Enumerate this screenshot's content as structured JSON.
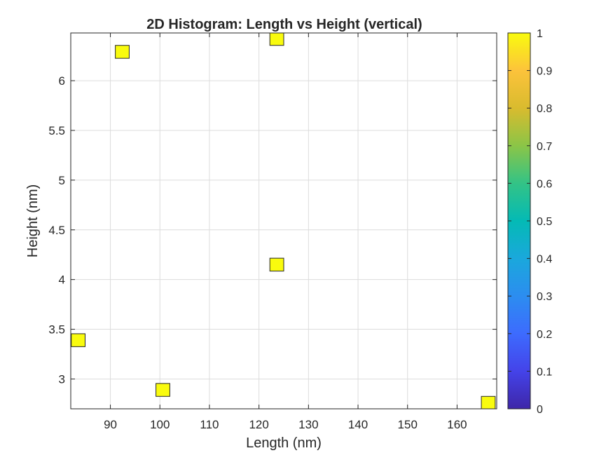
{
  "chart_data": {
    "type": "heatmap",
    "title": "2D Histogram: Length vs Height (vertical)",
    "xlabel": "Length (nm)",
    "ylabel": "Height (nm)",
    "xlim": [
      82,
      168
    ],
    "ylim": [
      2.7,
      6.48
    ],
    "xticks": [
      90,
      100,
      110,
      120,
      130,
      140,
      150,
      160
    ],
    "yticks": [
      3,
      3.5,
      4,
      4.5,
      5,
      5.5,
      6
    ],
    "grid": true,
    "bin_width": {
      "x": 2.8,
      "y": 0.13
    },
    "points": [
      {
        "x": 92.4,
        "y": 6.29,
        "count": 1
      },
      {
        "x": 123.6,
        "y": 6.42,
        "count": 1
      },
      {
        "x": 123.6,
        "y": 4.15,
        "count": 1
      },
      {
        "x": 83.5,
        "y": 3.39,
        "count": 1
      },
      {
        "x": 100.6,
        "y": 2.89,
        "count": 1
      },
      {
        "x": 166.3,
        "y": 2.76,
        "count": 1
      }
    ],
    "colorbar": {
      "range": [
        0,
        1
      ],
      "ticks": [
        "0",
        "0.1",
        "0.2",
        "0.3",
        "0.4",
        "0.5",
        "0.6",
        "0.7",
        "0.8",
        "0.9",
        "1"
      ],
      "colormap": "parula",
      "bin_color": "#f9fb0e"
    }
  }
}
